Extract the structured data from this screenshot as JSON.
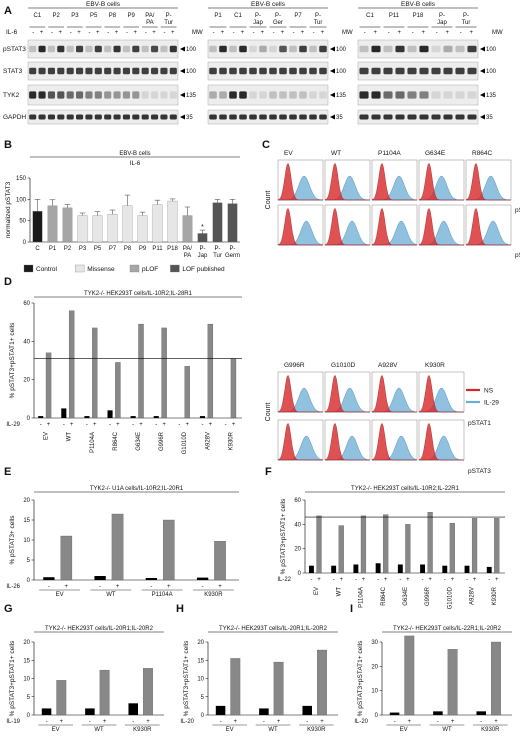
{
  "figure": {
    "panels": [
      {
        "id": "A",
        "label": "A"
      },
      {
        "id": "B",
        "label": "B"
      },
      {
        "id": "C",
        "label": "C"
      },
      {
        "id": "D",
        "label": "D"
      },
      {
        "id": "E",
        "label": "E"
      },
      {
        "id": "F",
        "label": "F"
      },
      {
        "id": "G",
        "label": "G"
      },
      {
        "id": "H",
        "label": "H"
      },
      {
        "id": "I",
        "label": "I"
      }
    ]
  },
  "blots": {
    "header": "EBV-B cells",
    "il_label": "IL-6",
    "mw_label": "MW",
    "rows": [
      "pSTAT3",
      "STAT3",
      "TYK2",
      "GAPDH"
    ],
    "mw_values": [
      "100",
      "100",
      "135",
      "35"
    ],
    "groups": [
      {
        "samples": [
          "C1",
          "P2",
          "P3",
          "P5",
          "P8",
          "P9",
          "PA/\nPA",
          "P-\nTur"
        ]
      },
      {
        "samples": [
          "P1",
          "C1",
          "P-\nJap",
          "P-\nGer",
          "P7",
          "P-\nTur"
        ]
      },
      {
        "samples": [
          "C1",
          "P11",
          "P18",
          "P-\nJap",
          "P-\nTur"
        ]
      }
    ]
  },
  "chart_data": [
    {
      "panel": "B",
      "type": "bar",
      "title": "EBV-B cells",
      "subtitle": "IL-6",
      "ylabel": "normalized pSTAT3",
      "ylim": [
        0,
        150
      ],
      "yticks": [
        0,
        50,
        100,
        150
      ],
      "categories": [
        "C",
        "P1",
        "P2",
        "P3",
        "P5",
        "P7",
        "P8",
        "P9",
        "P11",
        "P18",
        "PA/\nPA",
        "P-\nJap",
        "P-\nTur",
        "P-\nGerm"
      ],
      "values": [
        72,
        85,
        80,
        62,
        62,
        65,
        85,
        62,
        88,
        96,
        62,
        20,
        92,
        90
      ],
      "errors": [
        28,
        14,
        8,
        6,
        9,
        10,
        25,
        8,
        10,
        5,
        20,
        8,
        8,
        10
      ],
      "groups": [
        "control",
        "pLOF",
        "pLOF",
        "missense",
        "missense",
        "missense",
        "missense",
        "missense",
        "missense",
        "missense",
        "pLOF",
        "lof",
        "lof",
        "lof"
      ],
      "group_colors": {
        "control": "#1a1a1a",
        "missense": "#e6e6e6",
        "pLOF": "#a6a6a6",
        "lof": "#555555"
      },
      "annotations": [
        {
          "category_index": 11,
          "text": "*"
        }
      ],
      "legend": [
        {
          "key": "control",
          "label": "Control"
        },
        {
          "key": "missense",
          "label": "Missense"
        },
        {
          "key": "pLOF",
          "label": "pLOF"
        },
        {
          "key": "lof",
          "label": "LOF published"
        }
      ]
    },
    {
      "panel": "D",
      "type": "bar",
      "title": "TYK2-/- HEK293T cells/IL-10R2;IL-28R1",
      "ylabel": "% pSTAT3+pSTAT1+ cells",
      "ylim": [
        0,
        60
      ],
      "yticks": [
        0,
        20,
        40,
        60
      ],
      "treatment": "IL-29",
      "categories": [
        "EV",
        "WT",
        "P1104A",
        "R864C",
        "G634E",
        "G996R",
        "G1010D",
        "A928V",
        "K930R"
      ],
      "series": [
        {
          "name": "-",
          "values": [
            1,
            5,
            1,
            4,
            1,
            1,
            0,
            1,
            0
          ]
        },
        {
          "name": "+",
          "values": [
            34,
            56,
            47,
            29,
            49,
            47,
            27,
            49,
            31
          ]
        }
      ],
      "reference_line": 31
    },
    {
      "panel": "E",
      "type": "bar",
      "title": "TYK2-/- U1A cells/IL-10R2;IL-20R1",
      "ylabel": "% pSTAT3+ cells",
      "ylim": [
        0,
        20
      ],
      "yticks": [
        0,
        5,
        10,
        15,
        20
      ],
      "treatment": "IL-26",
      "categories": [
        "EV",
        "WT",
        "P1104A",
        "K930R"
      ],
      "series": [
        {
          "name": "-",
          "values": [
            0.7,
            1.0,
            0.5,
            0.6
          ]
        },
        {
          "name": "+",
          "values": [
            11,
            16.5,
            15,
            9.7
          ]
        }
      ]
    },
    {
      "panel": "F",
      "type": "bar",
      "title": "TYK2-/- HEK293T cells/IL-10R2;IL-22R1",
      "ylabel": "% pSTAT3+pSTAT1+ cells",
      "ylim": [
        0,
        60
      ],
      "yticks": [
        0,
        20,
        40,
        60
      ],
      "treatment": "IL-22",
      "categories": [
        "EV",
        "WT",
        "P1104A",
        "R864C",
        "G634E",
        "G996R",
        "G1010D",
        "A928V",
        "K930R"
      ],
      "series": [
        {
          "name": "-",
          "values": [
            6,
            6,
            7,
            8,
            7,
            7,
            6,
            6,
            5
          ]
        },
        {
          "name": "+",
          "values": [
            47,
            39,
            47,
            48,
            40,
            50,
            41,
            45,
            45
          ]
        }
      ],
      "reference_line": 46
    },
    {
      "panel": "G",
      "type": "bar",
      "title": "TYK2-/- HEK293T cells/IL-20R1;IL-20R2",
      "ylabel": "% pSTAT3+pSTAT1+ cells",
      "ylim": [
        0,
        20
      ],
      "yticks": [
        0,
        5,
        10,
        15,
        20
      ],
      "treatment": "IL-19",
      "categories": [
        "EV",
        "WT",
        "K930R"
      ],
      "series": [
        {
          "name": "-",
          "values": [
            1.8,
            1.8,
            3.2
          ]
        },
        {
          "name": "+",
          "values": [
            9.5,
            12.3,
            12.8
          ]
        }
      ]
    },
    {
      "panel": "H",
      "type": "bar",
      "title": "TYK2-/- HEK293T cells/IL-20R1;IL-20R2",
      "ylabel": "% pSTAT3+pSTAT1+ cells",
      "ylim": [
        0,
        20
      ],
      "yticks": [
        0,
        5,
        10,
        15,
        20
      ],
      "treatment": "IL-20",
      "categories": [
        "EV",
        "WT",
        "K930R"
      ],
      "series": [
        {
          "name": "-",
          "values": [
            2.5,
            1.8,
            2.5
          ]
        },
        {
          "name": "+",
          "values": [
            15.5,
            14.5,
            17.8
          ]
        }
      ]
    },
    {
      "panel": "I",
      "type": "bar",
      "title": "TYK2-/- HEK293T cells/IL-22R1;IL-20R2",
      "ylabel": "% pSTAT3+pSTAT1+ cells",
      "ylim": [
        0,
        30
      ],
      "yticks": [
        0,
        10,
        20,
        30
      ],
      "treatment": "IL-20",
      "categories": [
        "EV",
        "WT",
        "K930R"
      ],
      "series": [
        {
          "name": "-",
          "values": [
            1,
            1.5,
            1.5
          ]
        },
        {
          "name": "+",
          "values": [
            32.5,
            27,
            30
          ]
        }
      ]
    }
  ],
  "flow": {
    "count_label": "Count",
    "row_labels": [
      "pSTAT1",
      "pSTAT3"
    ],
    "top_names": [
      "EV",
      "WT",
      "P1104A",
      "G634E",
      "R864C"
    ],
    "bottom_names": [
      "G996R",
      "G1010D",
      "A928V",
      "K930R"
    ],
    "legend": [
      {
        "label": "NS",
        "color": "#d62728"
      },
      {
        "label": "IL-29",
        "color": "#6baed6"
      }
    ]
  }
}
